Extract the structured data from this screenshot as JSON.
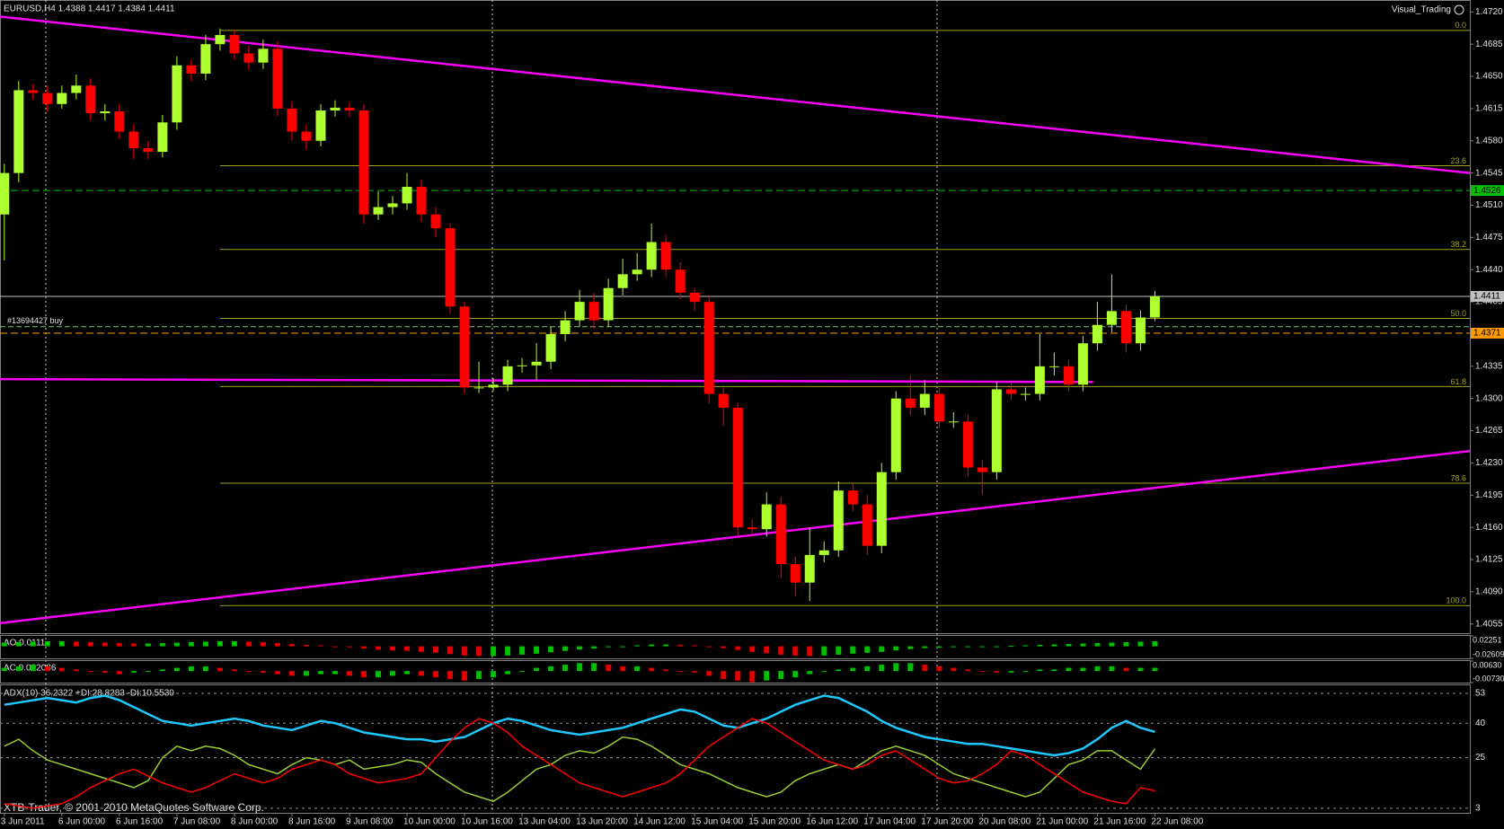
{
  "chart_data": [
    {
      "type": "candlestick",
      "title": "EURUSD,H4  1.4388 1.4417 1.4384 1.4411",
      "watermark": "Visual_Trading",
      "categories": [
        "3 Jun 2011",
        null,
        null,
        null,
        "6 Jun 00:00",
        null,
        null,
        null,
        "6 Jun 16:00",
        null,
        null,
        null,
        "7 Jun 08:00",
        null,
        null,
        null,
        "8 Jun 00:00",
        null,
        null,
        null,
        "8 Jun 16:00",
        null,
        null,
        null,
        "9 Jun 08:00",
        null,
        null,
        null,
        "10 Jun 00:00",
        null,
        null,
        null,
        "10 Jun 16:00",
        null,
        null,
        null,
        "13 Jun 04:00",
        null,
        null,
        null,
        "13 Jun 20:00",
        null,
        null,
        null,
        "14 Jun 12:00",
        null,
        null,
        null,
        "15 Jun 04:00",
        null,
        null,
        null,
        "15 Jun 20:00",
        null,
        null,
        null,
        "16 Jun 12:00",
        null,
        null,
        null,
        "17 Jun 04:00",
        null,
        null,
        null,
        "17 Jun 20:00",
        null,
        null,
        null,
        "20 Jun 08:00",
        null,
        null,
        null,
        "21 Jun 00:00",
        null,
        null,
        null,
        "21 Jun 16:00",
        null,
        null,
        null,
        "22 Jun 08:00"
      ],
      "open": [
        1.45,
        1.4545,
        1.4635,
        1.4632,
        1.462,
        1.4632,
        1.464,
        1.461,
        1.4612,
        1.459,
        1.4572,
        1.4568,
        1.46,
        1.4662,
        1.4653,
        1.4685,
        1.4695,
        1.4675,
        1.4665,
        1.468,
        1.4615,
        1.459,
        1.458,
        1.4613,
        1.4616,
        1.4613,
        1.45,
        1.4508,
        1.4512,
        1.453,
        1.45,
        1.4485,
        1.44,
        1.4312,
        1.4312,
        1.4315,
        1.4335,
        1.4336,
        1.434,
        1.437,
        1.4385,
        1.4405,
        1.4385,
        1.442,
        1.4435,
        1.444,
        1.447,
        1.444,
        1.4415,
        1.4405,
        1.4305,
        1.429,
        1.416,
        1.4158,
        1.4185,
        1.412,
        1.41,
        1.413,
        1.4135,
        1.42,
        1.4185,
        1.414,
        1.422,
        1.43,
        1.429,
        1.4305,
        1.4275,
        1.4275,
        1.4225,
        1.422,
        1.431,
        1.4305,
        1.4305,
        1.4335,
        1.4335,
        1.4315,
        1.436,
        1.438,
        1.4395,
        1.436,
        1.4388
      ],
      "high": [
        1.4555,
        1.4645,
        1.4642,
        1.464,
        1.464,
        1.4652,
        1.4648,
        1.462,
        1.462,
        1.4598,
        1.458,
        1.4608,
        1.4672,
        1.4668,
        1.4695,
        1.4702,
        1.47,
        1.4683,
        1.469,
        1.4688,
        1.4623,
        1.4598,
        1.462,
        1.4624,
        1.4622,
        1.462,
        1.4525,
        1.452,
        1.4545,
        1.4538,
        1.4508,
        1.449,
        1.4405,
        1.434,
        1.4322,
        1.4342,
        1.4344,
        1.436,
        1.4378,
        1.4395,
        1.4418,
        1.4415,
        1.443,
        1.4452,
        1.4458,
        1.449,
        1.4478,
        1.4448,
        1.442,
        1.4412,
        1.4312,
        1.4296,
        1.4168,
        1.4198,
        1.4193,
        1.4128,
        1.416,
        1.4145,
        1.421,
        1.4208,
        1.4195,
        1.423,
        1.4308,
        1.4325,
        1.432,
        1.4312,
        1.4285,
        1.4283,
        1.4233,
        1.4318,
        1.4318,
        1.4312,
        1.437,
        1.435,
        1.4342,
        1.4368,
        1.4405,
        1.4435,
        1.4402,
        1.4396,
        1.4417
      ],
      "low": [
        1.445,
        1.4535,
        1.4625,
        1.4612,
        1.4615,
        1.4625,
        1.4602,
        1.4602,
        1.4582,
        1.456,
        1.456,
        1.4562,
        1.4592,
        1.4645,
        1.4646,
        1.4678,
        1.4668,
        1.4657,
        1.4658,
        1.4607,
        1.458,
        1.457,
        1.4574,
        1.4606,
        1.4606,
        1.449,
        1.4494,
        1.45,
        1.4505,
        1.4492,
        1.4475,
        1.4392,
        1.4305,
        1.4306,
        1.4308,
        1.4308,
        1.4328,
        1.432,
        1.4332,
        1.4362,
        1.4378,
        1.4376,
        1.4378,
        1.4412,
        1.4428,
        1.4432,
        1.4432,
        1.4408,
        1.4395,
        1.4295,
        1.427,
        1.415,
        1.415,
        1.415,
        1.4105,
        1.4085,
        1.408,
        1.4122,
        1.4128,
        1.4178,
        1.413,
        1.4132,
        1.4212,
        1.4282,
        1.4282,
        1.4268,
        1.4268,
        1.4215,
        1.4195,
        1.4212,
        1.4298,
        1.4298,
        1.4298,
        1.4325,
        1.4308,
        1.4308,
        1.4352,
        1.4372,
        1.435,
        1.4352,
        1.4384
      ],
      "close": [
        1.4545,
        1.4635,
        1.4632,
        1.462,
        1.4632,
        1.464,
        1.461,
        1.4612,
        1.459,
        1.4572,
        1.4568,
        1.46,
        1.4662,
        1.4653,
        1.4685,
        1.4695,
        1.4675,
        1.4665,
        1.468,
        1.4615,
        1.459,
        1.458,
        1.4613,
        1.4616,
        1.4613,
        1.45,
        1.4508,
        1.4512,
        1.453,
        1.45,
        1.4485,
        1.44,
        1.4312,
        1.4312,
        1.4315,
        1.4335,
        1.4336,
        1.434,
        1.437,
        1.4385,
        1.4405,
        1.4385,
        1.442,
        1.4435,
        1.444,
        1.447,
        1.444,
        1.4415,
        1.4405,
        1.4305,
        1.429,
        1.416,
        1.4158,
        1.4185,
        1.412,
        1.41,
        1.413,
        1.4135,
        1.42,
        1.4185,
        1.414,
        1.422,
        1.43,
        1.429,
        1.4305,
        1.4275,
        1.4275,
        1.4225,
        1.422,
        1.431,
        1.4305,
        1.4305,
        1.4335,
        1.4335,
        1.4315,
        1.436,
        1.438,
        1.4395,
        1.436,
        1.4388,
        1.4411
      ],
      "up_color": "#adff2f",
      "down_color": "#ff0000",
      "xlim": [
        -0.3,
        101.9
      ],
      "ylim": [
        1.4045,
        1.4733
      ],
      "yticks": [
        {
          "value": 1.472,
          "label": "1.4720"
        },
        {
          "value": 1.4685,
          "label": "1.4685"
        },
        {
          "value": 1.465,
          "label": "1.4650"
        },
        {
          "value": 1.4615,
          "label": "1.4615"
        },
        {
          "value": 1.458,
          "label": "1.4580"
        },
        {
          "value": 1.4545,
          "label": "1.4545"
        },
        {
          "value": 1.451,
          "label": "1.4510"
        },
        {
          "value": 1.4475,
          "label": "1.4475"
        },
        {
          "value": 1.444,
          "label": "1.4440"
        },
        {
          "value": 1.4405,
          "label": "1.4405"
        },
        {
          "value": 1.437,
          "label": "1.4370"
        },
        {
          "value": 1.4335,
          "label": "1.4335"
        },
        {
          "value": 1.43,
          "label": "1.4300"
        },
        {
          "value": 1.4265,
          "label": "1.4265"
        },
        {
          "value": 1.423,
          "label": "1.4230"
        },
        {
          "value": 1.4195,
          "label": "1.4195"
        },
        {
          "value": 1.416,
          "label": "1.4160"
        },
        {
          "value": 1.4125,
          "label": "1.4125"
        },
        {
          "value": 1.409,
          "label": "1.4090"
        },
        {
          "value": 1.4055,
          "label": "1.4055"
        }
      ],
      "levels": [
        {
          "value": 1.4526,
          "label": "1.4526",
          "color": "#00c000",
          "dashed": true
        },
        {
          "value": 1.4411,
          "label": "1.4411",
          "color": "#c0c0c0",
          "dashed": false
        },
        {
          "value": 1.4371,
          "label": "1.4371",
          "color": "#ff9900",
          "dashed": true
        }
      ],
      "order": {
        "value": 1.4378,
        "label": "#13694427 buy",
        "color": "#8fbc8f"
      },
      "fibonacci": {
        "from": 15,
        "color": "#a0a020",
        "levels": [
          {
            "value": 1.47,
            "label": "0.0"
          },
          {
            "value": 1.4553,
            "label": "23.6"
          },
          {
            "value": 1.4462,
            "label": "38.2"
          },
          {
            "value": 1.4387,
            "label": "50.0"
          },
          {
            "value": 1.4313,
            "label": "61.8"
          },
          {
            "value": 1.4208,
            "label": "78.6"
          },
          {
            "value": 1.4075,
            "label": "100.0"
          }
        ]
      },
      "trendlines": [
        {
          "color": "#ff00ff",
          "x": [
            -0.3,
            101.9
          ],
          "y": [
            1.4715,
            1.4545
          ]
        },
        {
          "color": "#ff00ff",
          "x": [
            -0.3,
            101.9
          ],
          "y": [
            1.4056,
            1.4243
          ]
        },
        {
          "color": "#ff00ff",
          "x": [
            -0.3,
            75.7
          ],
          "y": [
            1.4321,
            1.4318
          ]
        }
      ]
    },
    {
      "type": "histogram",
      "title": "AO 0.0111",
      "up_color": "#00c000",
      "down_color": "#e00000",
      "ylim": [
        -0.02609,
        0.02251
      ],
      "yticks": [
        0.02251,
        -0.02609
      ],
      "values": [
        0.008,
        0.009,
        0.01,
        0.011,
        0.011,
        0.01,
        0.009,
        0.008,
        0.007,
        0.006,
        0.006,
        0.007,
        0.008,
        0.009,
        0.01,
        0.011,
        0.011,
        0.01,
        0.009,
        0.007,
        0.005,
        0.003,
        0.002,
        0.0,
        -0.002,
        -0.005,
        -0.007,
        -0.009,
        -0.01,
        -0.012,
        -0.014,
        -0.017,
        -0.02,
        -0.021,
        -0.021,
        -0.02,
        -0.018,
        -0.016,
        -0.013,
        -0.01,
        -0.007,
        -0.005,
        -0.002,
        0.0,
        0.002,
        0.004,
        0.004,
        0.003,
        0.002,
        -0.001,
        -0.004,
        -0.008,
        -0.012,
        -0.015,
        -0.018,
        -0.02,
        -0.021,
        -0.02,
        -0.018,
        -0.016,
        -0.014,
        -0.012,
        -0.009,
        -0.006,
        -0.004,
        -0.003,
        -0.002,
        -0.001,
        -0.001,
        0.0,
        0.001,
        0.002,
        0.003,
        0.004,
        0.005,
        0.006,
        0.007,
        0.008,
        0.009,
        0.01,
        0.011
      ]
    },
    {
      "type": "histogram",
      "title": "AC 0.002086",
      "up_color": "#00c000",
      "down_color": "#e00000",
      "ylim": [
        -0.0073,
        0.0063
      ],
      "yticks": [
        {
          "value": 0.0063,
          "label": "0.00630"
        },
        {
          "value": -0.0073,
          "label": "-0.00730"
        }
      ],
      "values": [
        0.002,
        0.003,
        0.004,
        0.003,
        0.002,
        0.001,
        0.0,
        -0.001,
        -0.002,
        -0.001,
        0.0,
        0.001,
        0.002,
        0.003,
        0.003,
        0.002,
        0.001,
        0.0,
        -0.001,
        -0.002,
        -0.003,
        -0.003,
        -0.002,
        -0.002,
        -0.003,
        -0.004,
        -0.004,
        -0.003,
        -0.002,
        -0.003,
        -0.004,
        -0.005,
        -0.006,
        -0.005,
        -0.004,
        -0.002,
        0.0,
        0.002,
        0.003,
        0.004,
        0.005,
        0.005,
        0.004,
        0.003,
        0.003,
        0.002,
        0.001,
        0.0,
        -0.001,
        -0.003,
        -0.005,
        -0.006,
        -0.007,
        -0.006,
        -0.005,
        -0.004,
        -0.002,
        0.0,
        0.001,
        0.002,
        0.003,
        0.004,
        0.005,
        0.005,
        0.004,
        0.003,
        0.002,
        0.001,
        0.0,
        -0.001,
        -0.001,
        0.0,
        0.001,
        0.001,
        0.002,
        0.002,
        0.003,
        0.003,
        0.002,
        0.002,
        0.002
      ]
    },
    {
      "type": "line",
      "title": "ADX(10) 36.2322 +DI:28.8283 -DI:10.5530",
      "ylim": [
        1,
        56.5
      ],
      "yticks": [
        53,
        40,
        25,
        3
      ],
      "series": [
        {
          "name": "ADX",
          "color": "#1ec8ff",
          "values": [
            48,
            49,
            50,
            51,
            50,
            49,
            51,
            52,
            50,
            47,
            44,
            41,
            40,
            39,
            40,
            41,
            42,
            41,
            39,
            38,
            37,
            39,
            41,
            40,
            38,
            36,
            35,
            34,
            33,
            33,
            32,
            33,
            34,
            37,
            40,
            42,
            41,
            39,
            37,
            36,
            35,
            36,
            37,
            38,
            40,
            42,
            44,
            46,
            45,
            42,
            39,
            38,
            40,
            42,
            45,
            48,
            50,
            52,
            51,
            48,
            45,
            41,
            38,
            36,
            34,
            33,
            32,
            31,
            31,
            30,
            29,
            28,
            27,
            26,
            27,
            29,
            33,
            38,
            41,
            38,
            36.2322
          ]
        },
        {
          "name": "+DI",
          "color": "#9acd32",
          "values": [
            30,
            33,
            28,
            24,
            22,
            20,
            18,
            16,
            14,
            12,
            15,
            25,
            30,
            28,
            30,
            29,
            26,
            22,
            20,
            18,
            22,
            25,
            24,
            22,
            24,
            20,
            21,
            22,
            24,
            23,
            18,
            14,
            10,
            8,
            6,
            10,
            15,
            20,
            22,
            26,
            28,
            27,
            30,
            34,
            33,
            30,
            26,
            22,
            20,
            18,
            15,
            12,
            10,
            8,
            10,
            15,
            18,
            20,
            22,
            20,
            24,
            28,
            30,
            28,
            26,
            22,
            18,
            16,
            14,
            12,
            10,
            8,
            10,
            16,
            22,
            24,
            28,
            28,
            24,
            20,
            28.8283
          ]
        },
        {
          "name": "-DI",
          "color": "#ff0000",
          "values": [
            5,
            4,
            3,
            4,
            5,
            8,
            12,
            15,
            18,
            20,
            17,
            14,
            12,
            10,
            12,
            15,
            18,
            16,
            14,
            16,
            20,
            22,
            24,
            22,
            18,
            16,
            14,
            15,
            16,
            18,
            25,
            32,
            38,
            42,
            40,
            36,
            30,
            26,
            22,
            18,
            14,
            12,
            10,
            8,
            10,
            12,
            14,
            18,
            24,
            30,
            34,
            38,
            42,
            40,
            36,
            32,
            28,
            24,
            22,
            20,
            22,
            26,
            28,
            24,
            20,
            16,
            14,
            15,
            18,
            22,
            28,
            26,
            22,
            18,
            14,
            10,
            8,
            6,
            5,
            12,
            10.553
          ]
        }
      ]
    }
  ],
  "footer": "XTB-Trader, © 2001-2010 MetaQuotes Software Corp."
}
